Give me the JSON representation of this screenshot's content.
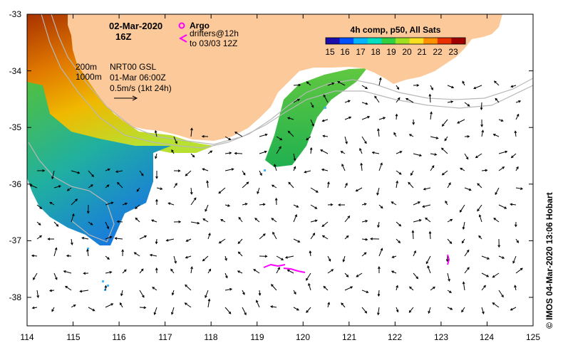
{
  "map": {
    "date": "02-Mar-2020",
    "hour": "16Z",
    "product": "4h comp, p50, All Sats",
    "colorbar_ticks": [
      "15",
      "16",
      "17",
      "18",
      "19",
      "20",
      "21",
      "22",
      "23"
    ],
    "colorbar_colors": [
      "#1a0dab",
      "#0050ff",
      "#00b4ff",
      "#00e0c0",
      "#30d040",
      "#a0e020",
      "#f8e020",
      "#ff9000",
      "#e83000",
      "#a00000"
    ],
    "legend": {
      "argo_label": "Argo",
      "drifters_label": "drifters@12h",
      "drifters_to": "to 03/03 12Z",
      "contour_200": "200m",
      "contour_1000": "1000m",
      "currents_source": "NRT00 GSL",
      "currents_time": "01-Mar 06:00Z",
      "currents_scale": "0.5m/s (1kt 24h)"
    },
    "lon_ticks": [
      "114",
      "115",
      "116",
      "117",
      "118",
      "119",
      "120",
      "121",
      "122",
      "123",
      "124",
      "125"
    ],
    "lat_ticks": [
      "-33",
      "-34",
      "-35",
      "-36",
      "-37",
      "-38"
    ],
    "credit": "© IMOS 04-Mar-2020 13:06 Hobart",
    "colors": {
      "land": "#fbc99a",
      "drifter": "#ff00ff",
      "contour": "#b8b8b8"
    }
  }
}
